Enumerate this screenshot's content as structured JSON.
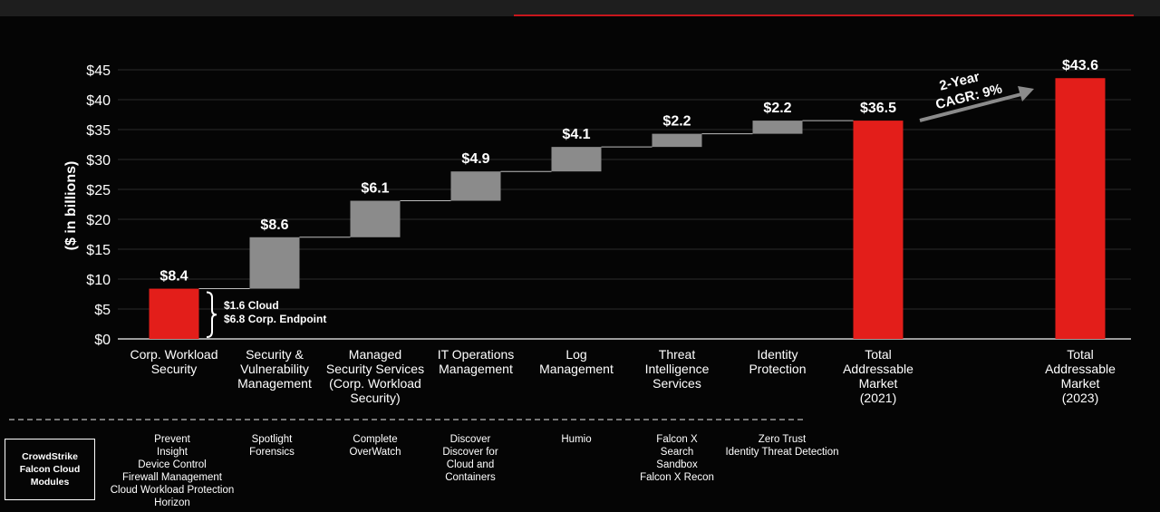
{
  "chart_data": {
    "type": "waterfall",
    "ylabel": "($ in billions)",
    "ylim": [
      0,
      45
    ],
    "yticks": [
      "$0",
      "$5",
      "$10",
      "$15",
      "$20",
      "$25",
      "$30",
      "$35",
      "$40",
      "$45"
    ],
    "grid": true,
    "colors": {
      "total": "#e31e1a",
      "increment": "#8b8b8b",
      "connector": "#bdbdbd"
    },
    "bars": [
      {
        "category": [
          "Corp. Workload",
          "Security"
        ],
        "start": 0,
        "end": 8.4,
        "label": "$8.4",
        "kind": "total"
      },
      {
        "category": [
          "Security &",
          "Vulnerability",
          "Management"
        ],
        "start": 8.4,
        "end": 17.0,
        "label": "$8.6",
        "kind": "increment"
      },
      {
        "category": [
          "Managed",
          "Security Services",
          "(Corp. Workload",
          "Security)"
        ],
        "start": 17.0,
        "end": 23.1,
        "label": "$6.1",
        "kind": "increment"
      },
      {
        "category": [
          "IT Operations",
          "Management"
        ],
        "start": 23.1,
        "end": 28.0,
        "label": "$4.9",
        "kind": "increment"
      },
      {
        "category": [
          "Log",
          "Management"
        ],
        "start": 28.0,
        "end": 32.1,
        "label": "$4.1",
        "kind": "increment"
      },
      {
        "category": [
          "Threat",
          "Intelligence",
          "Services"
        ],
        "start": 32.1,
        "end": 34.3,
        "label": "$2.2",
        "kind": "increment"
      },
      {
        "category": [
          "Identity",
          "Protection"
        ],
        "start": 34.3,
        "end": 36.5,
        "label": "$2.2",
        "kind": "increment"
      },
      {
        "category": [
          "Total",
          "Addressable",
          "Market",
          "(2021)"
        ],
        "start": 0,
        "end": 36.5,
        "label": "$36.5",
        "kind": "total"
      },
      {
        "category": [
          "Total",
          "Addressable",
          "Market",
          "(2023)"
        ],
        "start": 0,
        "end": 43.6,
        "label": "$43.6",
        "kind": "total"
      }
    ],
    "annotations": {
      "bracket": [
        "$1.6 Cloud",
        "$6.8 Corp. Endpoint"
      ],
      "cagr": [
        "2-Year",
        "CAGR: 9%"
      ]
    }
  },
  "modules": {
    "title": "CrowdStrike\nFalcon Cloud\nModules",
    "columns": [
      [
        "Prevent",
        "Insight",
        "Device Control",
        "Firewall Management",
        "Cloud Workload Protection",
        "Horizon"
      ],
      [
        "Spotlight",
        "Forensics"
      ],
      [
        "Complete",
        "OverWatch"
      ],
      [
        "Discover",
        "Discover for",
        "Cloud and",
        "Containers"
      ],
      [
        "Humio"
      ],
      [
        "Falcon X",
        "Search",
        "Sandbox",
        "Falcon X Recon"
      ],
      [
        "Zero Trust",
        "Identity Threat Detection"
      ]
    ]
  }
}
